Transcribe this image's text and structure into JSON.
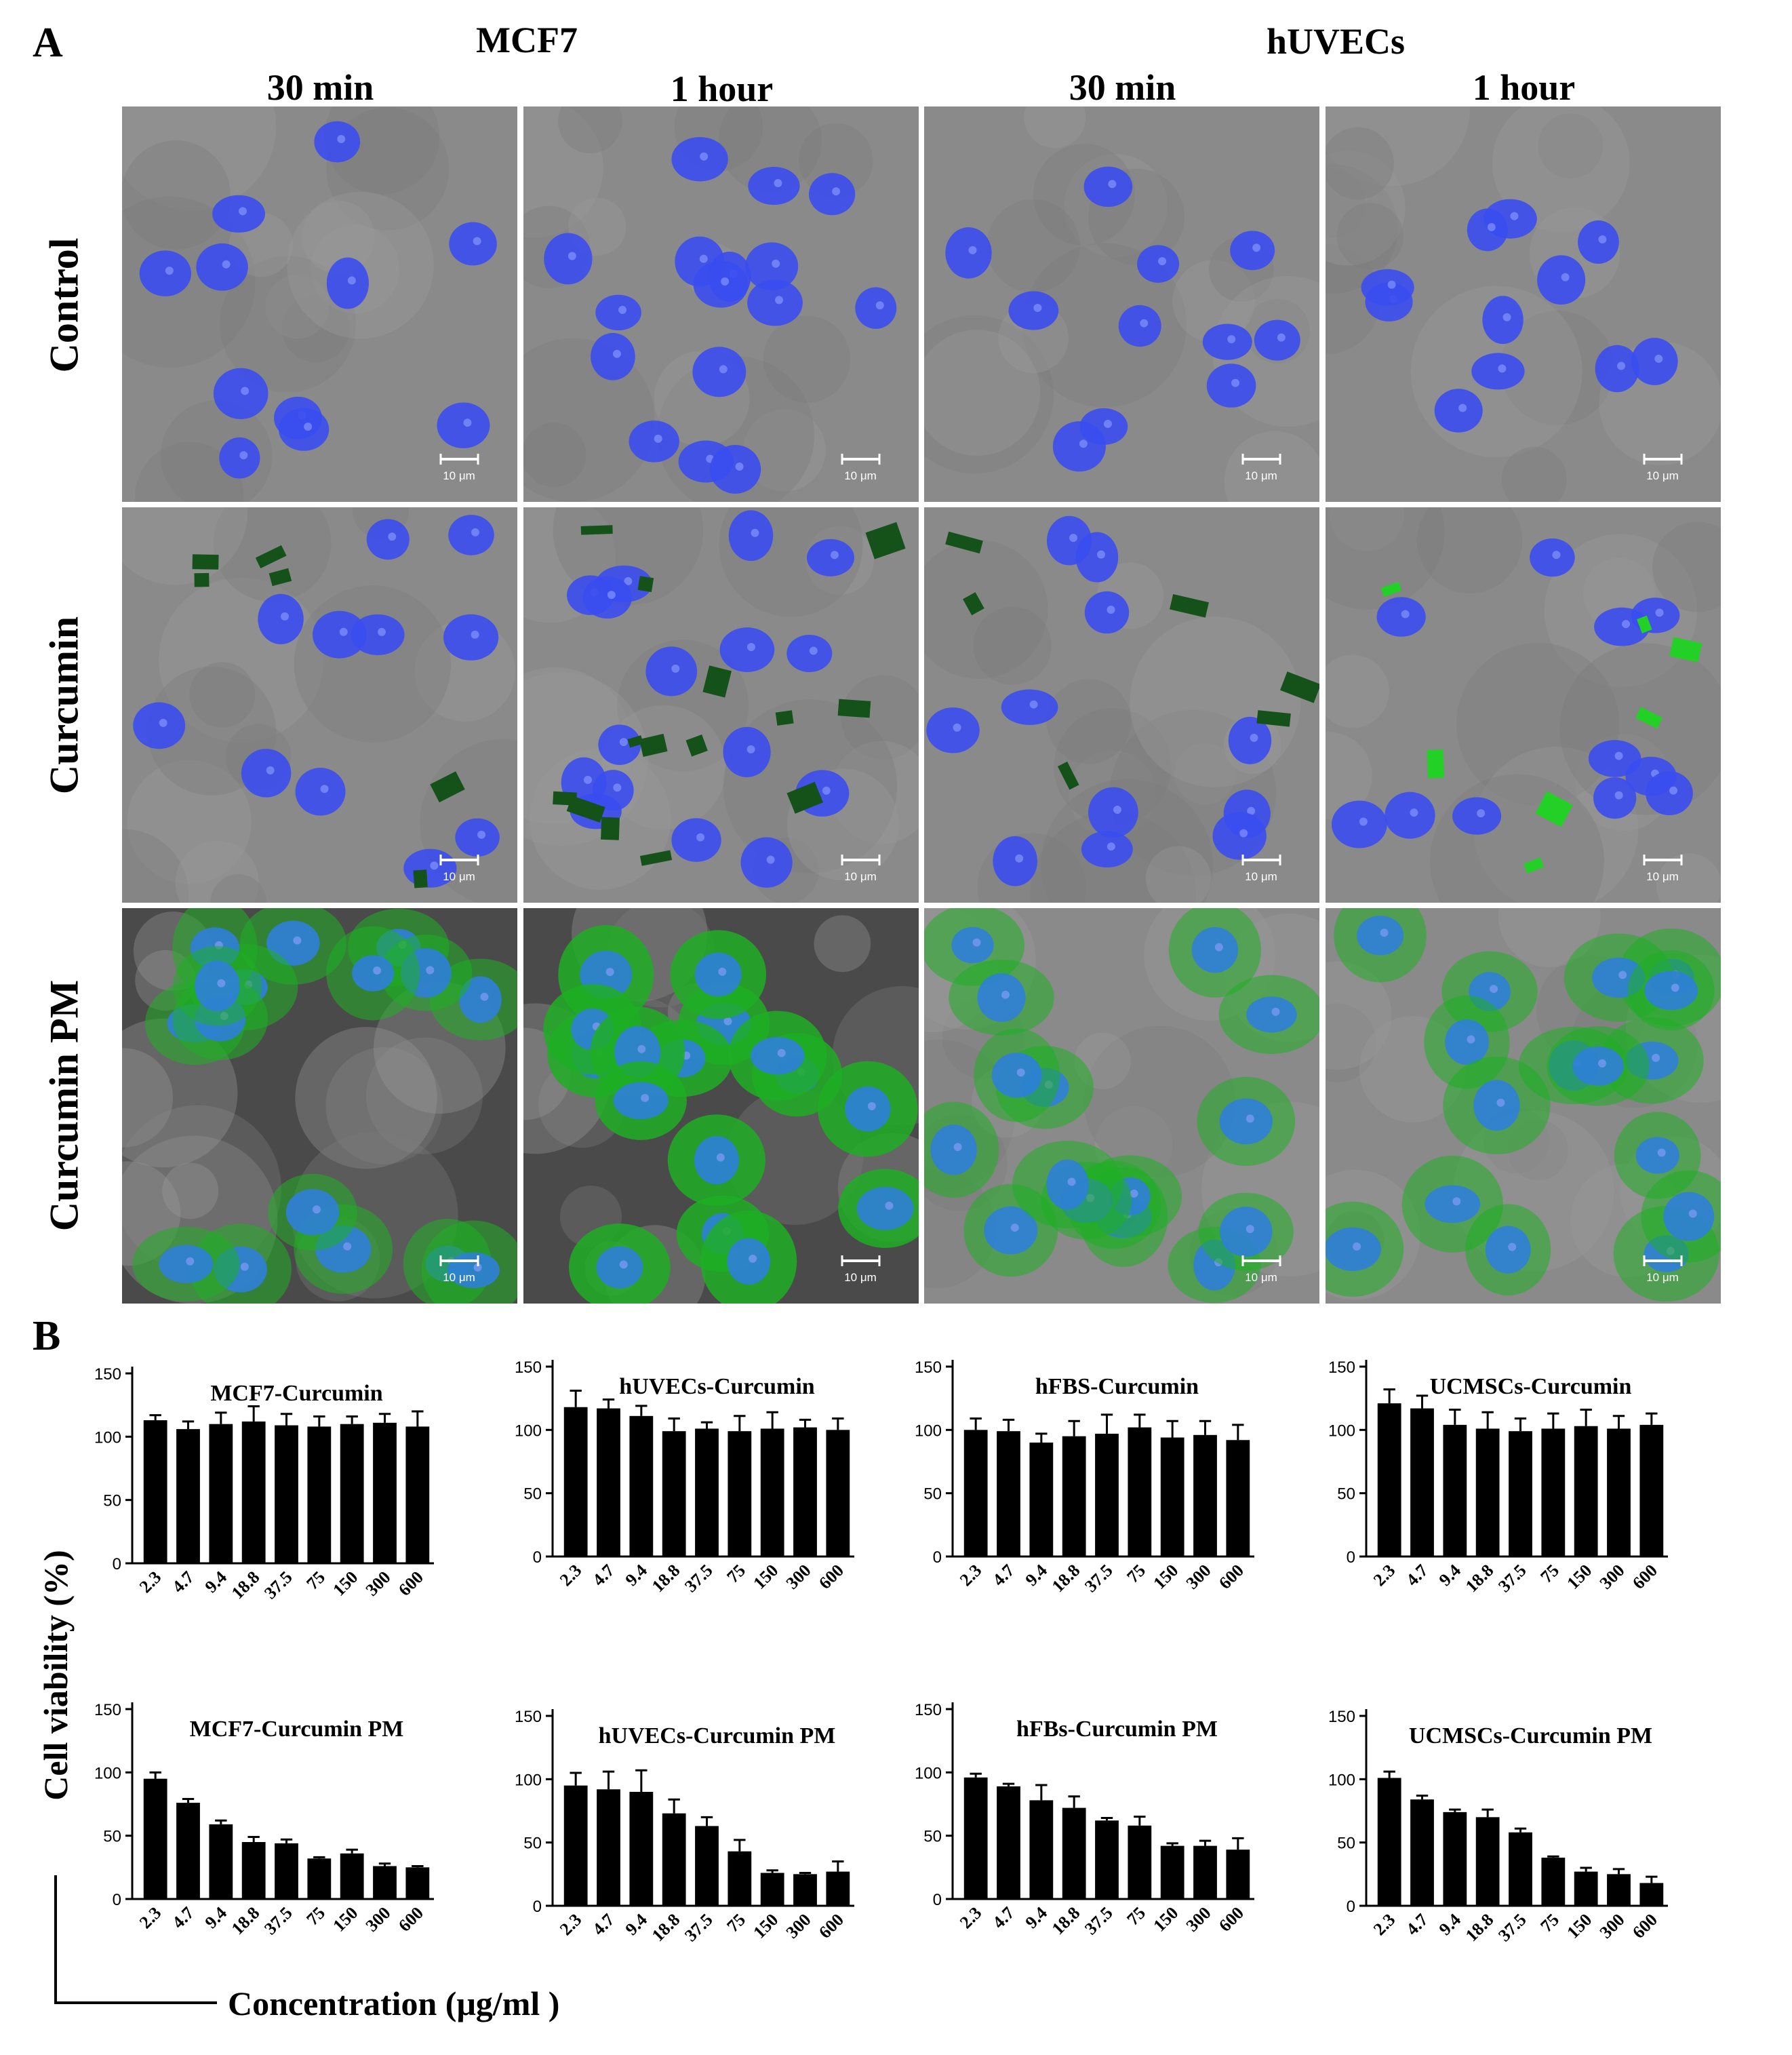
{
  "panel_a": {
    "letter": "A",
    "groups": [
      "MCF7",
      "hUVECs"
    ],
    "columns": [
      "30 min",
      "1 hour",
      "30 min",
      "1 hour"
    ],
    "rows": [
      "Control",
      "Curcumin",
      "Curcumin PM"
    ],
    "scale_bar_label": "10 μm",
    "colors": {
      "nucleus": "#3a4cf0",
      "curcumin": "#1fae24",
      "background": "#8a8a8a"
    }
  },
  "panel_b": {
    "letter": "B",
    "y_axis_label": "Cell viability (%)",
    "x_axis_label": "Concentration (μg/ml )"
  },
  "chart_data": [
    {
      "type": "bar",
      "title": "MCF7-Curcumin",
      "categories": [
        "2.3",
        "4.7",
        "9.4",
        "18.8",
        "37.5",
        "75",
        "150",
        "300",
        "600"
      ],
      "values": [
        113,
        106,
        110,
        112,
        109,
        108,
        110,
        111,
        108
      ],
      "errors": [
        4,
        6,
        9,
        12,
        9,
        8,
        6,
        7,
        12
      ],
      "ylim": [
        0,
        150
      ],
      "yticks": [
        0,
        50,
        100,
        150
      ]
    },
    {
      "type": "bar",
      "title": "hUVECs-Curcumin",
      "categories": [
        "2.3",
        "4.7",
        "9.4",
        "18.8",
        "37.5",
        "75",
        "150",
        "300",
        "600"
      ],
      "values": [
        118,
        117,
        111,
        99,
        101,
        99,
        101,
        102,
        100
      ],
      "errors": [
        13,
        7,
        8,
        10,
        5,
        12,
        13,
        6,
        9
      ],
      "ylim": [
        0,
        150
      ],
      "yticks": [
        0,
        50,
        100,
        150
      ]
    },
    {
      "type": "bar",
      "title": "hFBS-Curcumin",
      "categories": [
        "2.3",
        "4.7",
        "9.4",
        "18.8",
        "37.5",
        "75",
        "150",
        "300",
        "600"
      ],
      "values": [
        100,
        99,
        90,
        95,
        97,
        102,
        94,
        96,
        92
      ],
      "errors": [
        9,
        9,
        7,
        12,
        15,
        10,
        13,
        11,
        12
      ],
      "ylim": [
        0,
        150
      ],
      "yticks": [
        0,
        50,
        100,
        150
      ]
    },
    {
      "type": "bar",
      "title": "UCMSCs-Curcumin",
      "categories": [
        "2.3",
        "4.7",
        "9.4",
        "18.8",
        "37.5",
        "75",
        "150",
        "300",
        "600"
      ],
      "values": [
        121,
        117,
        104,
        101,
        99,
        101,
        103,
        101,
        104
      ],
      "errors": [
        11,
        10,
        12,
        13,
        10,
        12,
        13,
        10,
        9
      ],
      "ylim": [
        0,
        150
      ],
      "yticks": [
        0,
        50,
        100,
        150
      ]
    },
    {
      "type": "bar",
      "title": "MCF7-Curcumin PM",
      "categories": [
        "2.3",
        "4.7",
        "9.4",
        "18.8",
        "37.5",
        "75",
        "150",
        "300",
        "600"
      ],
      "values": [
        95,
        76,
        59,
        45,
        44,
        32,
        36,
        26,
        25
      ],
      "errors": [
        5,
        3,
        3,
        4,
        3,
        1,
        3,
        2,
        1
      ],
      "ylim": [
        0,
        150
      ],
      "yticks": [
        0,
        50,
        100,
        150
      ]
    },
    {
      "type": "bar",
      "title": "hUVECs-Curcumin PM",
      "categories": [
        "2.3",
        "4.7",
        "9.4",
        "18.8",
        "37.5",
        "75",
        "150",
        "300",
        "600"
      ],
      "values": [
        95,
        92,
        90,
        73,
        63,
        43,
        26,
        25,
        27
      ],
      "errors": [
        10,
        14,
        17,
        11,
        7,
        9,
        2,
        1,
        8
      ],
      "ylim": [
        0,
        150
      ],
      "yticks": [
        0,
        50,
        100,
        150
      ]
    },
    {
      "type": "bar",
      "title": "hFBs-Curcumin PM",
      "categories": [
        "2.3",
        "4.7",
        "9.4",
        "18.8",
        "37.5",
        "75",
        "150",
        "300",
        "600"
      ],
      "values": [
        96,
        89,
        78,
        72,
        62,
        58,
        42,
        42,
        39
      ],
      "errors": [
        3,
        2,
        12,
        9,
        2,
        7,
        2,
        4,
        9
      ],
      "ylim": [
        0,
        150
      ],
      "yticks": [
        0,
        50,
        100,
        150
      ]
    },
    {
      "type": "bar",
      "title": "UCMSCs-Curcumin PM",
      "categories": [
        "2.3",
        "4.7",
        "9.4",
        "18.8",
        "37.5",
        "75",
        "150",
        "300",
        "600"
      ],
      "values": [
        101,
        84,
        74,
        70,
        58,
        38,
        27,
        25,
        18
      ],
      "errors": [
        5,
        3,
        2,
        6,
        3,
        1,
        3,
        4,
        5
      ],
      "ylim": [
        0,
        150
      ],
      "yticks": [
        0,
        50,
        100,
        150
      ]
    }
  ]
}
